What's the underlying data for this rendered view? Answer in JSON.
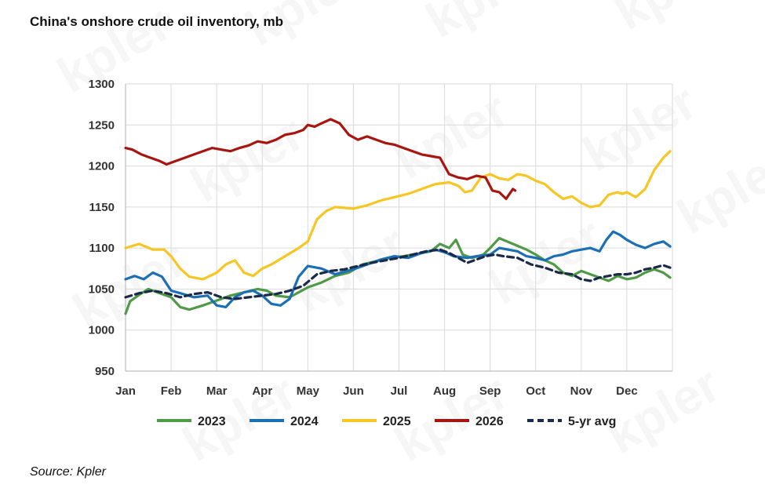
{
  "watermark_text": "kpler",
  "source": "Source: Kpler",
  "colors": {
    "2023": "#4e9a47",
    "2024": "#1a6fb5",
    "2025": "#f7c623",
    "2026": "#a8150f",
    "5yr": "#1b2a49",
    "grid": "#d9d9d9",
    "axis": "#bfbfbf"
  },
  "chart_data": {
    "type": "line",
    "title": "China's onshore crude oil inventory, mb",
    "xlabel": "",
    "ylabel": "",
    "ylim": [
      950,
      1300
    ],
    "yticks": [
      950,
      1000,
      1050,
      1100,
      1150,
      1200,
      1250,
      1300
    ],
    "xlim": [
      0,
      12
    ],
    "x_ticks": [
      "Jan",
      "Feb",
      "Mar",
      "Apr",
      "May",
      "Jun",
      "Jul",
      "Aug",
      "Sep",
      "Oct",
      "Nov",
      "Dec"
    ],
    "grid": true,
    "legend_position": "bottom",
    "series": [
      {
        "name": "2023",
        "style": "solid",
        "color_key": "2023",
        "x": [
          0,
          0.1,
          0.3,
          0.5,
          0.75,
          1.0,
          1.2,
          1.4,
          1.7,
          2.0,
          2.3,
          2.6,
          2.9,
          3.1,
          3.3,
          3.6,
          3.8,
          4.0,
          4.3,
          4.6,
          4.9,
          5.2,
          5.5,
          5.8,
          6.1,
          6.4,
          6.7,
          6.9,
          7.1,
          7.25,
          7.4,
          7.6,
          7.85,
          8.0,
          8.2,
          8.5,
          8.8,
          9.0,
          9.2,
          9.4,
          9.6,
          9.8,
          10.0,
          10.2,
          10.4,
          10.6,
          10.8,
          11.0,
          11.2,
          11.4,
          11.6,
          11.8,
          11.95
        ],
        "y": [
          1020,
          1035,
          1043,
          1050,
          1045,
          1040,
          1028,
          1025,
          1030,
          1036,
          1042,
          1046,
          1050,
          1048,
          1042,
          1040,
          1046,
          1052,
          1058,
          1066,
          1070,
          1080,
          1084,
          1088,
          1090,
          1093,
          1096,
          1105,
          1100,
          1110,
          1092,
          1088,
          1092,
          1100,
          1112,
          1105,
          1098,
          1092,
          1085,
          1080,
          1070,
          1066,
          1072,
          1068,
          1064,
          1060,
          1066,
          1062,
          1064,
          1070,
          1074,
          1070,
          1064
        ]
      },
      {
        "name": "2024",
        "style": "solid",
        "color_key": "2024",
        "x": [
          0,
          0.2,
          0.4,
          0.6,
          0.8,
          1.0,
          1.2,
          1.5,
          1.8,
          2.0,
          2.2,
          2.4,
          2.6,
          2.8,
          3.0,
          3.2,
          3.4,
          3.6,
          3.8,
          4.0,
          4.3,
          4.6,
          5.0,
          5.3,
          5.6,
          5.9,
          6.2,
          6.5,
          6.8,
          7.0,
          7.2,
          7.5,
          7.7,
          8.0,
          8.2,
          8.4,
          8.6,
          8.8,
          9.0,
          9.2,
          9.4,
          9.6,
          9.8,
          10.0,
          10.2,
          10.4,
          10.55,
          10.7,
          10.85,
          11.0,
          11.2,
          11.4,
          11.6,
          11.8,
          11.95
        ],
        "y": [
          1062,
          1066,
          1062,
          1070,
          1065,
          1048,
          1045,
          1040,
          1042,
          1030,
          1028,
          1040,
          1046,
          1048,
          1042,
          1032,
          1030,
          1038,
          1065,
          1078,
          1075,
          1068,
          1074,
          1080,
          1086,
          1090,
          1088,
          1094,
          1098,
          1095,
          1090,
          1088,
          1090,
          1092,
          1100,
          1098,
          1096,
          1090,
          1088,
          1085,
          1090,
          1092,
          1096,
          1098,
          1100,
          1096,
          1110,
          1120,
          1116,
          1110,
          1104,
          1100,
          1105,
          1108,
          1102
        ]
      },
      {
        "name": "2025",
        "style": "solid",
        "color_key": "2025",
        "x": [
          0,
          0.3,
          0.6,
          0.85,
          1.0,
          1.2,
          1.4,
          1.7,
          2.0,
          2.2,
          2.4,
          2.6,
          2.8,
          3.0,
          3.2,
          3.5,
          3.8,
          4.0,
          4.2,
          4.4,
          4.6,
          5.0,
          5.3,
          5.6,
          5.9,
          6.2,
          6.5,
          6.8,
          7.1,
          7.3,
          7.45,
          7.6,
          7.8,
          8.0,
          8.2,
          8.4,
          8.6,
          8.8,
          9.0,
          9.2,
          9.4,
          9.6,
          9.8,
          10.0,
          10.2,
          10.4,
          10.6,
          10.8,
          10.9,
          11.0,
          11.2,
          11.4,
          11.6,
          11.8,
          11.95
        ],
        "y": [
          1100,
          1105,
          1098,
          1098,
          1090,
          1075,
          1065,
          1062,
          1070,
          1080,
          1085,
          1070,
          1066,
          1075,
          1080,
          1090,
          1100,
          1108,
          1135,
          1145,
          1150,
          1148,
          1152,
          1158,
          1162,
          1166,
          1172,
          1178,
          1180,
          1176,
          1168,
          1170,
          1186,
          1190,
          1185,
          1183,
          1190,
          1188,
          1182,
          1178,
          1168,
          1160,
          1163,
          1155,
          1150,
          1152,
          1165,
          1168,
          1166,
          1168,
          1162,
          1172,
          1195,
          1210,
          1218
        ]
      },
      {
        "name": "2026",
        "style": "solid",
        "color_key": "2026",
        "x": [
          0,
          0.15,
          0.35,
          0.55,
          0.75,
          0.9,
          1.1,
          1.3,
          1.5,
          1.7,
          1.9,
          2.1,
          2.3,
          2.5,
          2.7,
          2.9,
          3.1,
          3.3,
          3.5,
          3.7,
          3.9,
          4.0,
          4.15,
          4.3,
          4.5,
          4.7,
          4.9,
          5.1,
          5.3,
          5.5,
          5.7,
          5.9,
          6.1,
          6.3,
          6.5,
          6.7,
          6.9,
          7.1,
          7.3,
          7.5,
          7.7,
          7.9,
          8.05,
          8.2,
          8.35,
          8.5,
          8.55
        ],
        "y": [
          1222,
          1220,
          1214,
          1210,
          1206,
          1202,
          1206,
          1210,
          1214,
          1218,
          1222,
          1220,
          1218,
          1222,
          1225,
          1230,
          1228,
          1232,
          1238,
          1240,
          1244,
          1250,
          1248,
          1252,
          1257,
          1252,
          1238,
          1232,
          1236,
          1232,
          1228,
          1226,
          1222,
          1218,
          1214,
          1212,
          1210,
          1190,
          1186,
          1184,
          1188,
          1186,
          1170,
          1168,
          1160,
          1172,
          1170
        ]
      },
      {
        "name": "5-yr avg",
        "style": "dashed",
        "color_key": "5yr",
        "x": [
          0,
          0.3,
          0.6,
          0.9,
          1.2,
          1.5,
          1.8,
          2.1,
          2.4,
          2.7,
          3.0,
          3.3,
          3.6,
          3.9,
          4.2,
          4.5,
          4.8,
          5.1,
          5.4,
          5.7,
          6.0,
          6.3,
          6.6,
          6.9,
          7.1,
          7.3,
          7.5,
          7.7,
          7.9,
          8.1,
          8.3,
          8.6,
          8.9,
          9.2,
          9.5,
          9.8,
          10.0,
          10.2,
          10.4,
          10.6,
          10.8,
          11.0,
          11.2,
          11.4,
          11.6,
          11.8,
          11.95
        ],
        "y": [
          1040,
          1045,
          1048,
          1045,
          1040,
          1044,
          1046,
          1040,
          1038,
          1040,
          1042,
          1044,
          1048,
          1054,
          1068,
          1072,
          1074,
          1078,
          1082,
          1085,
          1088,
          1092,
          1096,
          1098,
          1094,
          1088,
          1082,
          1086,
          1090,
          1092,
          1090,
          1088,
          1080,
          1076,
          1070,
          1068,
          1062,
          1060,
          1064,
          1066,
          1068,
          1068,
          1070,
          1074,
          1076,
          1079,
          1076
        ]
      }
    ]
  }
}
